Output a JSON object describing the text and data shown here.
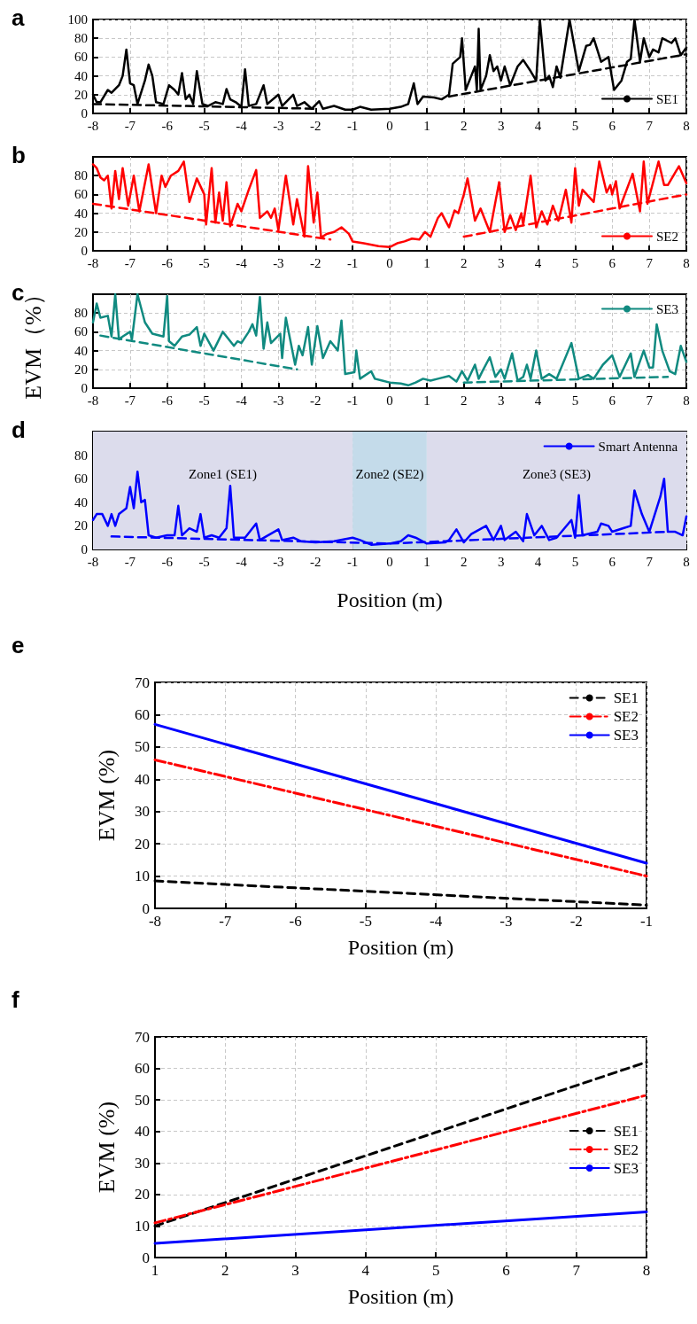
{
  "chart_data": [
    {
      "type": "line",
      "title": "a",
      "xlim": [
        -8,
        8
      ],
      "xticks": [
        -8,
        -7,
        -6,
        -5,
        -4,
        -3,
        -2,
        -1,
        0,
        1,
        2,
        3,
        4,
        5,
        6,
        7,
        8
      ],
      "ylim": [
        0,
        100
      ],
      "yticks": [
        0,
        20,
        40,
        60,
        80,
        100
      ],
      "grid": true,
      "legend": "bottom right",
      "marker": "none",
      "series": [
        {
          "name": "SE1",
          "color": "#000000",
          "line_style": "solid",
          "x": [
            -8,
            -7.9,
            -7.8,
            -7.6,
            -7.5,
            -7.3,
            -7.2,
            -7.1,
            -7,
            -6.9,
            -6.8,
            -6.6,
            -6.5,
            -6.4,
            -6.3,
            -6.1,
            -5.95,
            -5.8,
            -5.7,
            -5.6,
            -5.5,
            -5.4,
            -5.3,
            -5.2,
            -5.05,
            -4.9,
            -4.7,
            -4.5,
            -4.4,
            -4.3,
            -4.15,
            -4,
            -3.9,
            -3.8,
            -3.6,
            -3.4,
            -3.3,
            -3,
            -2.9,
            -2.6,
            -2.5,
            -2.3,
            -2.1,
            -1.9,
            -1.8,
            -1.5,
            -1.2,
            -1,
            -0.8,
            -0.5,
            0,
            0.3,
            0.5,
            0.65,
            0.75,
            0.9,
            1.2,
            1.4,
            1.6,
            1.7,
            1.9,
            1.95,
            2.05,
            2.2,
            2.3,
            2.35,
            2.4,
            2.45,
            2.6,
            2.7,
            2.8,
            2.9,
            3,
            3.1,
            3.25,
            3.45,
            3.6,
            3.8,
            3.95,
            4.05,
            4.2,
            4.3,
            4.4,
            4.5,
            4.6,
            4.85,
            5.1,
            5.3,
            5.4,
            5.5,
            5.7,
            5.9,
            6.05,
            6.25,
            6.4,
            6.5,
            6.6,
            6.75,
            6.85,
            7,
            7.1,
            7.25,
            7.35,
            7.6,
            7.7,
            7.85,
            8
          ],
          "values": [
            20,
            12,
            12,
            25,
            22,
            30,
            40,
            68,
            32,
            30,
            10,
            35,
            52,
            40,
            12,
            10,
            30,
            25,
            20,
            43,
            15,
            20,
            10,
            45,
            10,
            8,
            12,
            10,
            26,
            15,
            12,
            7,
            47,
            8,
            10,
            30,
            10,
            20,
            8,
            20,
            8,
            12,
            5,
            13,
            5,
            8,
            4,
            4,
            7,
            4,
            5,
            7,
            10,
            32,
            10,
            18,
            17,
            15,
            20,
            53,
            60,
            80,
            25,
            40,
            50,
            25,
            90,
            25,
            40,
            62,
            45,
            50,
            35,
            50,
            30,
            50,
            57,
            45,
            35,
            100,
            35,
            40,
            28,
            50,
            38,
            100,
            45,
            72,
            73,
            80,
            55,
            60,
            25,
            35,
            55,
            58,
            100,
            55,
            80,
            60,
            68,
            65,
            80,
            75,
            80,
            62,
            70
          ]
        },
        {
          "color": "#000000",
          "line_style": "dashed",
          "x": [
            -8,
            -2
          ],
          "values": [
            10,
            5
          ]
        },
        {
          "color": "#000000",
          "line_style": "dashed",
          "x": [
            1.6,
            8
          ],
          "values": [
            18,
            63
          ]
        }
      ]
    },
    {
      "type": "line",
      "title": "b",
      "xlim": [
        -8,
        8
      ],
      "xticks": [
        -8,
        -7,
        -6,
        -5,
        -4,
        -3,
        -2,
        -1,
        0,
        1,
        2,
        3,
        4,
        5,
        6,
        7,
        8
      ],
      "ylim": [
        0,
        100
      ],
      "yticks": [
        0,
        20,
        40,
        60,
        80
      ],
      "grid": true,
      "legend": "bottom right",
      "marker": "none",
      "series": [
        {
          "name": "SE2",
          "color": "#ff0000",
          "line_style": "solid",
          "x": [
            -8,
            -7.9,
            -7.8,
            -7.7,
            -7.6,
            -7.5,
            -7.4,
            -7.3,
            -7.2,
            -7.05,
            -6.9,
            -6.75,
            -6.5,
            -6.3,
            -6.15,
            -6.05,
            -5.9,
            -5.7,
            -5.55,
            -5.4,
            -5.2,
            -5,
            -4.95,
            -4.8,
            -4.7,
            -4.6,
            -4.5,
            -4.4,
            -4.3,
            -4.1,
            -4,
            -3.8,
            -3.6,
            -3.5,
            -3.3,
            -3.2,
            -3.1,
            -3,
            -2.8,
            -2.6,
            -2.5,
            -2.3,
            -2.2,
            -2.05,
            -1.95,
            -1.85,
            -1.7,
            -1.5,
            -1.3,
            -1.1,
            -1,
            -0.7,
            -0.3,
            0,
            0.2,
            0.4,
            0.6,
            0.8,
            0.95,
            1.1,
            1.3,
            1.4,
            1.6,
            1.75,
            1.85,
            2,
            2.1,
            2.3,
            2.45,
            2.6,
            2.7,
            2.95,
            3.1,
            3.25,
            3.4,
            3.55,
            3.6,
            3.8,
            3.95,
            4.1,
            4.25,
            4.4,
            4.55,
            4.75,
            4.9,
            5,
            5.1,
            5.2,
            5.5,
            5.65,
            5.85,
            5.95,
            6,
            6.1,
            6.2,
            6.55,
            6.75,
            6.85,
            6.95,
            7.25,
            7.4,
            7.5,
            7.8,
            8
          ],
          "values": [
            92,
            88,
            78,
            75,
            80,
            45,
            85,
            55,
            88,
            48,
            80,
            42,
            92,
            40,
            80,
            68,
            80,
            85,
            95,
            52,
            77,
            60,
            28,
            88,
            30,
            62,
            32,
            73,
            26,
            50,
            42,
            65,
            86,
            35,
            42,
            35,
            45,
            22,
            80,
            28,
            55,
            15,
            90,
            30,
            62,
            14,
            18,
            20,
            25,
            18,
            10,
            8,
            5,
            4,
            8,
            10,
            13,
            12,
            20,
            15,
            35,
            40,
            25,
            43,
            40,
            60,
            77,
            32,
            45,
            30,
            20,
            73,
            20,
            38,
            22,
            40,
            28,
            80,
            25,
            42,
            28,
            48,
            32,
            65,
            30,
            88,
            48,
            65,
            52,
            95,
            62,
            70,
            60,
            74,
            45,
            82,
            42,
            95,
            50,
            95,
            70,
            70,
            90,
            72
          ]
        },
        {
          "color": "#ff0000",
          "line_style": "dashed",
          "x": [
            -8,
            -1.6
          ],
          "values": [
            50,
            12
          ]
        },
        {
          "color": "#ff0000",
          "line_style": "dashed",
          "x": [
            2,
            8
          ],
          "values": [
            15,
            60
          ]
        }
      ]
    },
    {
      "type": "line",
      "title": "c",
      "ylabel": "EVM（%）",
      "xlim": [
        -8,
        8
      ],
      "xticks": [
        -8,
        -7,
        -6,
        -5,
        -4,
        -3,
        -2,
        -1,
        0,
        1,
        2,
        3,
        4,
        5,
        6,
        7,
        8
      ],
      "ylim": [
        0,
        100
      ],
      "yticks": [
        0,
        20,
        40,
        60,
        80
      ],
      "grid": true,
      "legend": "top right",
      "marker": "none",
      "series": [
        {
          "name": "SE3",
          "color": "#108a80",
          "line_style": "solid",
          "x": [
            -8,
            -7.9,
            -7.8,
            -7.6,
            -7.5,
            -7.4,
            -7.3,
            -7.2,
            -7,
            -6.95,
            -6.8,
            -6.6,
            -6.4,
            -6.1,
            -6,
            -5.95,
            -5.8,
            -5.6,
            -5.4,
            -5.2,
            -5.1,
            -5,
            -4.75,
            -4.5,
            -4.2,
            -4.1,
            -4,
            -3.8,
            -3.7,
            -3.6,
            -3.5,
            -3.4,
            -3.3,
            -3.2,
            -2.95,
            -2.9,
            -2.8,
            -2.55,
            -2.45,
            -2.35,
            -2.2,
            -2.1,
            -1.95,
            -1.8,
            -1.6,
            -1.4,
            -1.3,
            -1.2,
            -0.95,
            -0.9,
            -0.8,
            -0.5,
            -0.4,
            -0.2,
            0,
            0.3,
            0.5,
            0.7,
            0.9,
            1.1,
            1.3,
            1.6,
            1.8,
            1.95,
            2.1,
            2.3,
            2.4,
            2.5,
            2.7,
            2.85,
            3,
            3.1,
            3.3,
            3.45,
            3.6,
            3.7,
            3.8,
            3.95,
            4.1,
            4.3,
            4.5,
            4.9,
            5.1,
            5.35,
            5.5,
            5.75,
            6,
            6.2,
            6.5,
            6.6,
            6.85,
            7,
            7.1,
            7.2,
            7.35,
            7.55,
            7.7,
            7.85,
            8
          ],
          "values": [
            70,
            90,
            75,
            77,
            55,
            100,
            52,
            55,
            60,
            52,
            100,
            70,
            58,
            55,
            98,
            50,
            45,
            55,
            57,
            65,
            45,
            58,
            40,
            60,
            45,
            50,
            48,
            60,
            68,
            56,
            97,
            42,
            70,
            48,
            58,
            32,
            75,
            25,
            45,
            35,
            65,
            25,
            66,
            32,
            50,
            40,
            72,
            15,
            17,
            40,
            10,
            18,
            10,
            8,
            6,
            5,
            3,
            6,
            10,
            8,
            10,
            13,
            7,
            18,
            8,
            25,
            10,
            18,
            33,
            12,
            20,
            10,
            37,
            8,
            12,
            25,
            10,
            40,
            10,
            15,
            10,
            48,
            10,
            14,
            10,
            25,
            35,
            12,
            37,
            12,
            40,
            22,
            22,
            68,
            40,
            18,
            15,
            45,
            28
          ]
        },
        {
          "color": "#108a80",
          "line_style": "dashed",
          "x": [
            -7.8,
            -2.5
          ],
          "values": [
            56,
            20
          ]
        },
        {
          "color": "#108a80",
          "line_style": "dashed",
          "x": [
            2,
            7.5
          ],
          "values": [
            6,
            12
          ]
        }
      ]
    },
    {
      "type": "line",
      "title": "d",
      "xlabel": "Position (m)",
      "xlim": [
        -8,
        8
      ],
      "xticks": [
        -8,
        -7,
        -6,
        -5,
        -4,
        -3,
        -2,
        -1,
        0,
        1,
        2,
        3,
        4,
        5,
        6,
        7,
        8
      ],
      "ylim": [
        0,
        100
      ],
      "yticks": [
        0,
        20,
        40,
        60,
        80
      ],
      "grid": true,
      "legend": "top right",
      "marker": "none",
      "bands": [
        {
          "axis": "x",
          "from": -8,
          "to": -1,
          "label": "Zone1 (SE1)",
          "color": "#dcdcec"
        },
        {
          "axis": "x",
          "from": -1,
          "to": 1,
          "label": "Zone2 (SE2)",
          "color": "#c4dbea"
        },
        {
          "axis": "x",
          "from": 1,
          "to": 8,
          "label": "Zone3 (SE3)",
          "color": "#dcdcec"
        }
      ],
      "series": [
        {
          "name": "Smart Antenna",
          "color": "#0000ff",
          "line_style": "solid",
          "x": [
            -8,
            -7.9,
            -7.75,
            -7.6,
            -7.5,
            -7.4,
            -7.3,
            -7.1,
            -7,
            -6.9,
            -6.8,
            -6.7,
            -6.6,
            -6.5,
            -6.3,
            -6,
            -5.8,
            -5.7,
            -5.6,
            -5.4,
            -5.2,
            -5.1,
            -5,
            -4.8,
            -4.6,
            -4.4,
            -4.3,
            -4.2,
            -3.9,
            -3.6,
            -3.5,
            -3,
            -2.9,
            -2.6,
            -2.4,
            -2,
            -1.5,
            -1,
            -0.8,
            -0.5,
            0,
            0.3,
            0.5,
            0.7,
            1,
            1.5,
            1.6,
            1.8,
            2,
            2.2,
            2.6,
            2.8,
            3,
            3.1,
            3.4,
            3.6,
            3.7,
            3.9,
            4.1,
            4.3,
            4.5,
            4.9,
            5,
            5.1,
            5.2,
            5.6,
            5.7,
            5.9,
            6,
            6.3,
            6.5,
            6.6,
            6.8,
            7,
            7.3,
            7.4,
            7.5,
            7.7,
            7.9,
            8
          ],
          "values": [
            25,
            30,
            30,
            20,
            30,
            20,
            30,
            35,
            53,
            35,
            66,
            40,
            42,
            12,
            10,
            12,
            12,
            37,
            12,
            18,
            15,
            30,
            10,
            12,
            10,
            18,
            54,
            10,
            10,
            22,
            8,
            17,
            8,
            10,
            7,
            6,
            7,
            10,
            8,
            4,
            5,
            7,
            12,
            10,
            5,
            6,
            8,
            17,
            6,
            13,
            20,
            8,
            20,
            8,
            15,
            7,
            30,
            12,
            20,
            8,
            10,
            25,
            10,
            46,
            12,
            15,
            22,
            20,
            15,
            18,
            20,
            50,
            30,
            15,
            45,
            60,
            15,
            15,
            12,
            28
          ]
        },
        {
          "color": "#0000ff",
          "line_style": "dashed",
          "x": [
            -7.5,
            0,
            7.5
          ],
          "values": [
            11,
            5,
            15
          ]
        }
      ]
    },
    {
      "type": "line",
      "title": "e",
      "xlabel": "Position (m)",
      "ylabel": "EVM (%)",
      "xlim": [
        -8,
        -1
      ],
      "xticks": [
        -8,
        -7,
        -6,
        -5,
        -4,
        -3,
        -2,
        -1
      ],
      "ylim": [
        0,
        70
      ],
      "yticks": [
        0,
        10,
        20,
        30,
        40,
        50,
        60,
        70
      ],
      "grid": true,
      "legend": "top right",
      "marker": "none",
      "series": [
        {
          "name": "SE1",
          "color": "#000000",
          "line_style": "dashed",
          "x": [
            -8,
            -1
          ],
          "values": [
            8.5,
            1
          ]
        },
        {
          "name": "SE2",
          "color": "#ff0000",
          "line_style": "dashdot",
          "x": [
            -8,
            -1
          ],
          "values": [
            46,
            10
          ]
        },
        {
          "name": "SE3",
          "color": "#0000ff",
          "line_style": "solid",
          "x": [
            -8,
            -1
          ],
          "values": [
            57,
            14
          ]
        }
      ]
    },
    {
      "type": "line",
      "title": "f",
      "xlabel": "Position (m)",
      "ylabel": "EVM (%)",
      "xlim": [
        1,
        8
      ],
      "xticks": [
        1,
        2,
        3,
        4,
        5,
        6,
        7,
        8
      ],
      "ylim": [
        0,
        70
      ],
      "yticks": [
        0,
        10,
        20,
        30,
        40,
        50,
        60,
        70
      ],
      "grid": true,
      "legend": "right",
      "marker": "none",
      "series": [
        {
          "name": "SE1",
          "color": "#000000",
          "line_style": "dashed",
          "x": [
            1,
            8
          ],
          "values": [
            10,
            62
          ]
        },
        {
          "name": "SE2",
          "color": "#ff0000",
          "line_style": "dashdot",
          "x": [
            1,
            8
          ],
          "values": [
            11,
            51.5
          ]
        },
        {
          "name": "SE3",
          "color": "#0000ff",
          "line_style": "solid",
          "x": [
            1,
            8
          ],
          "values": [
            4.5,
            14.5
          ]
        }
      ]
    }
  ]
}
